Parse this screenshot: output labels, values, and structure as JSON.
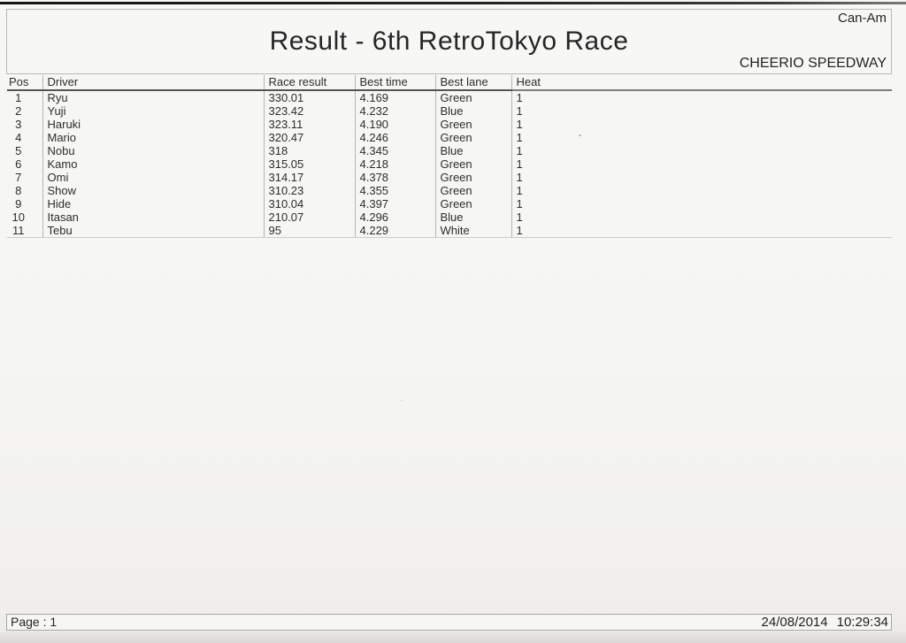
{
  "brand": "Can-Am",
  "header": {
    "title": "Result - 6th RetroTokyo Race",
    "venue": "CHEERIO SPEEDWAY"
  },
  "table": {
    "columns": [
      "Pos",
      "Driver",
      "Race result",
      "Best time",
      "Best lane",
      "Heat"
    ],
    "rows": [
      {
        "pos": "1",
        "driver": "Ryu",
        "race_result": "330.01",
        "best_time": "4.169",
        "best_lane": "Green",
        "heat": "1"
      },
      {
        "pos": "2",
        "driver": "Yuji",
        "race_result": "323.42",
        "best_time": "4.232",
        "best_lane": "Blue",
        "heat": "1"
      },
      {
        "pos": "3",
        "driver": "Haruki",
        "race_result": "323.11",
        "best_time": "4.190",
        "best_lane": "Green",
        "heat": "1"
      },
      {
        "pos": "4",
        "driver": "Mario",
        "race_result": "320.47",
        "best_time": "4.246",
        "best_lane": "Green",
        "heat": "1"
      },
      {
        "pos": "5",
        "driver": "Nobu",
        "race_result": "318",
        "best_time": "4.345",
        "best_lane": "Blue",
        "heat": "1"
      },
      {
        "pos": "6",
        "driver": "Kamo",
        "race_result": "315.05",
        "best_time": "4.218",
        "best_lane": "Green",
        "heat": "1"
      },
      {
        "pos": "7",
        "driver": "Omi",
        "race_result": "314.17",
        "best_time": "4.378",
        "best_lane": "Green",
        "heat": "1"
      },
      {
        "pos": "8",
        "driver": "Show",
        "race_result": "310.23",
        "best_time": "4.355",
        "best_lane": "Green",
        "heat": "1"
      },
      {
        "pos": "9",
        "driver": "Hide",
        "race_result": "310.04",
        "best_time": "4.397",
        "best_lane": "Green",
        "heat": "1"
      },
      {
        "pos": "10",
        "driver": "Itasan",
        "race_result": "210.07",
        "best_time": "4.296",
        "best_lane": "Blue",
        "heat": "1"
      },
      {
        "pos": "11",
        "driver": "Tebu",
        "race_result": "95",
        "best_time": "4.229",
        "best_lane": "White",
        "heat": "1"
      }
    ]
  },
  "footer": {
    "page_label": "Page : 1",
    "date": "24/08/2014",
    "time": "10:29:34"
  },
  "colors": {
    "paper": "#f5f5f3",
    "ink": "#2d2d2d",
    "border_light": "#b6b5b1",
    "rule_dark": "#555452",
    "top_edge": "#141414"
  }
}
